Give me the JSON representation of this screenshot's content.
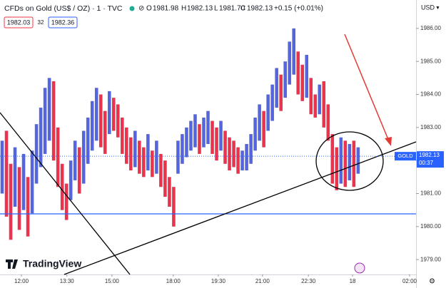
{
  "chart_data": {
    "type": "candlestick",
    "title": "CFDs on Gold (US$ / OZ) · 1 · TVC",
    "ohlc": {
      "o_label": "O",
      "open": 1981.98,
      "h_label": "H",
      "high": 1982.13,
      "l_label": "L",
      "low": {
        "value": 1981.7,
        "label": "1981.70"
      },
      "c_label": "C",
      "close": 1982.13,
      "change": "+0.15 (+0.01%)"
    },
    "sell": 1982.03,
    "spread": 32,
    "buy": 1982.36,
    "currency": "USD",
    "symbol_tag": "GOLD",
    "last_price": 1982.13,
    "countdown": "00:37",
    "watermark": "TradingView",
    "up_color": "#5566dd",
    "down_color": "#e8344e",
    "high": [
      1982.6,
      1982.9,
      1981.9,
      1982.4,
      1981.8,
      1982.2,
      1981.5,
      1982.3,
      1983.1,
      1983.6,
      1984.2,
      1984.5,
      1984.4,
      1983.0,
      1981.9,
      1981.3,
      1982.0,
      1982.6,
      1982.4,
      1982.9,
      1983.3,
      1983.8,
      1984.2,
      1984.0,
      1983.5,
      1984.1,
      1983.9,
      1983.7,
      1983.3,
      1983.0,
      1982.7,
      1982.9,
      1982.6,
      1982.4,
      1982.8,
      1982.3,
      1982.6,
      1982.2,
      1982.0,
      1981.5,
      1981.2,
      1982.6,
      1982.8,
      1983.0,
      1983.2,
      1983.4,
      1983.1,
      1983.3,
      1983.5,
      1983.2,
      1983.0,
      1983.2,
      1982.9,
      1982.7,
      1982.6,
      1982.4,
      1982.3,
      1982.5,
      1982.8,
      1983.3,
      1983.7,
      1983.5,
      1984.0,
      1984.3,
      1984.8,
      1984.6,
      1985.0,
      1985.6,
      1986.0,
      1985.3,
      1984.9,
      1985.2,
      1984.5,
      1984.0,
      1984.3,
      1984.4,
      1983.7,
      1982.8,
      1982.4,
      1982.7,
      1982.6,
      1982.5,
      1982.6,
      1982.4
    ],
    "low": [
      1981.0,
      1980.3,
      1979.6,
      1980.6,
      1979.9,
      1980.5,
      1979.7,
      1980.4,
      1981.3,
      1981.8,
      1982.2,
      1982.6,
      1982.0,
      1981.2,
      1980.5,
      1980.2,
      1980.8,
      1981.4,
      1981.0,
      1981.3,
      1981.9,
      1982.3,
      1982.6,
      1982.4,
      1982.2,
      1982.8,
      1982.9,
      1982.7,
      1982.2,
      1981.9,
      1981.7,
      1981.8,
      1981.6,
      1981.5,
      1981.7,
      1981.5,
      1981.6,
      1981.2,
      1980.9,
      1980.6,
      1980.0,
      1981.6,
      1981.9,
      1982.1,
      1982.3,
      1982.4,
      1982.2,
      1982.4,
      1982.5,
      1982.2,
      1982.0,
      1982.3,
      1981.9,
      1981.7,
      1981.8,
      1981.6,
      1981.7,
      1981.7,
      1981.9,
      1982.3,
      1982.6,
      1982.4,
      1982.9,
      1983.2,
      1983.6,
      1983.5,
      1983.9,
      1984.3,
      1984.6,
      1984.0,
      1983.8,
      1983.9,
      1983.4,
      1983.3,
      1983.4,
      1983.0,
      1982.6,
      1981.3,
      1981.1,
      1981.3,
      1981.2,
      1981.4,
      1981.2,
      1981.6
    ],
    "ylim": [
      1978.55,
      1986.86
    ],
    "yticks": [
      {
        "value": 1979,
        "label": "1979.00"
      },
      {
        "value": 1980,
        "label": "1980.00"
      },
      {
        "value": 1981,
        "label": "1981.00"
      },
      {
        "value": 1982,
        "label": "1982.00"
      },
      {
        "value": 1983,
        "label": "1983.00"
      },
      {
        "value": 1984,
        "label": "1984.00"
      },
      {
        "value": 1985,
        "label": "1985.00"
      },
      {
        "value": 1986,
        "label": "1986.00"
      }
    ],
    "xlim": [
      0,
      97
    ],
    "xticks": [
      {
        "value": 5,
        "label": "12:00"
      },
      {
        "value": 15.6,
        "label": "13:30"
      },
      {
        "value": 26.1,
        "label": "15:00"
      },
      {
        "value": 40.4,
        "label": "18:00"
      },
      {
        "value": 50.9,
        "label": "19:30"
      },
      {
        "value": 61.2,
        "label": "21:00"
      },
      {
        "value": 71.9,
        "label": "22:30"
      },
      {
        "value": 82.2,
        "label": "18"
      },
      {
        "value": 95.5,
        "label": "02:00"
      }
    ]
  }
}
